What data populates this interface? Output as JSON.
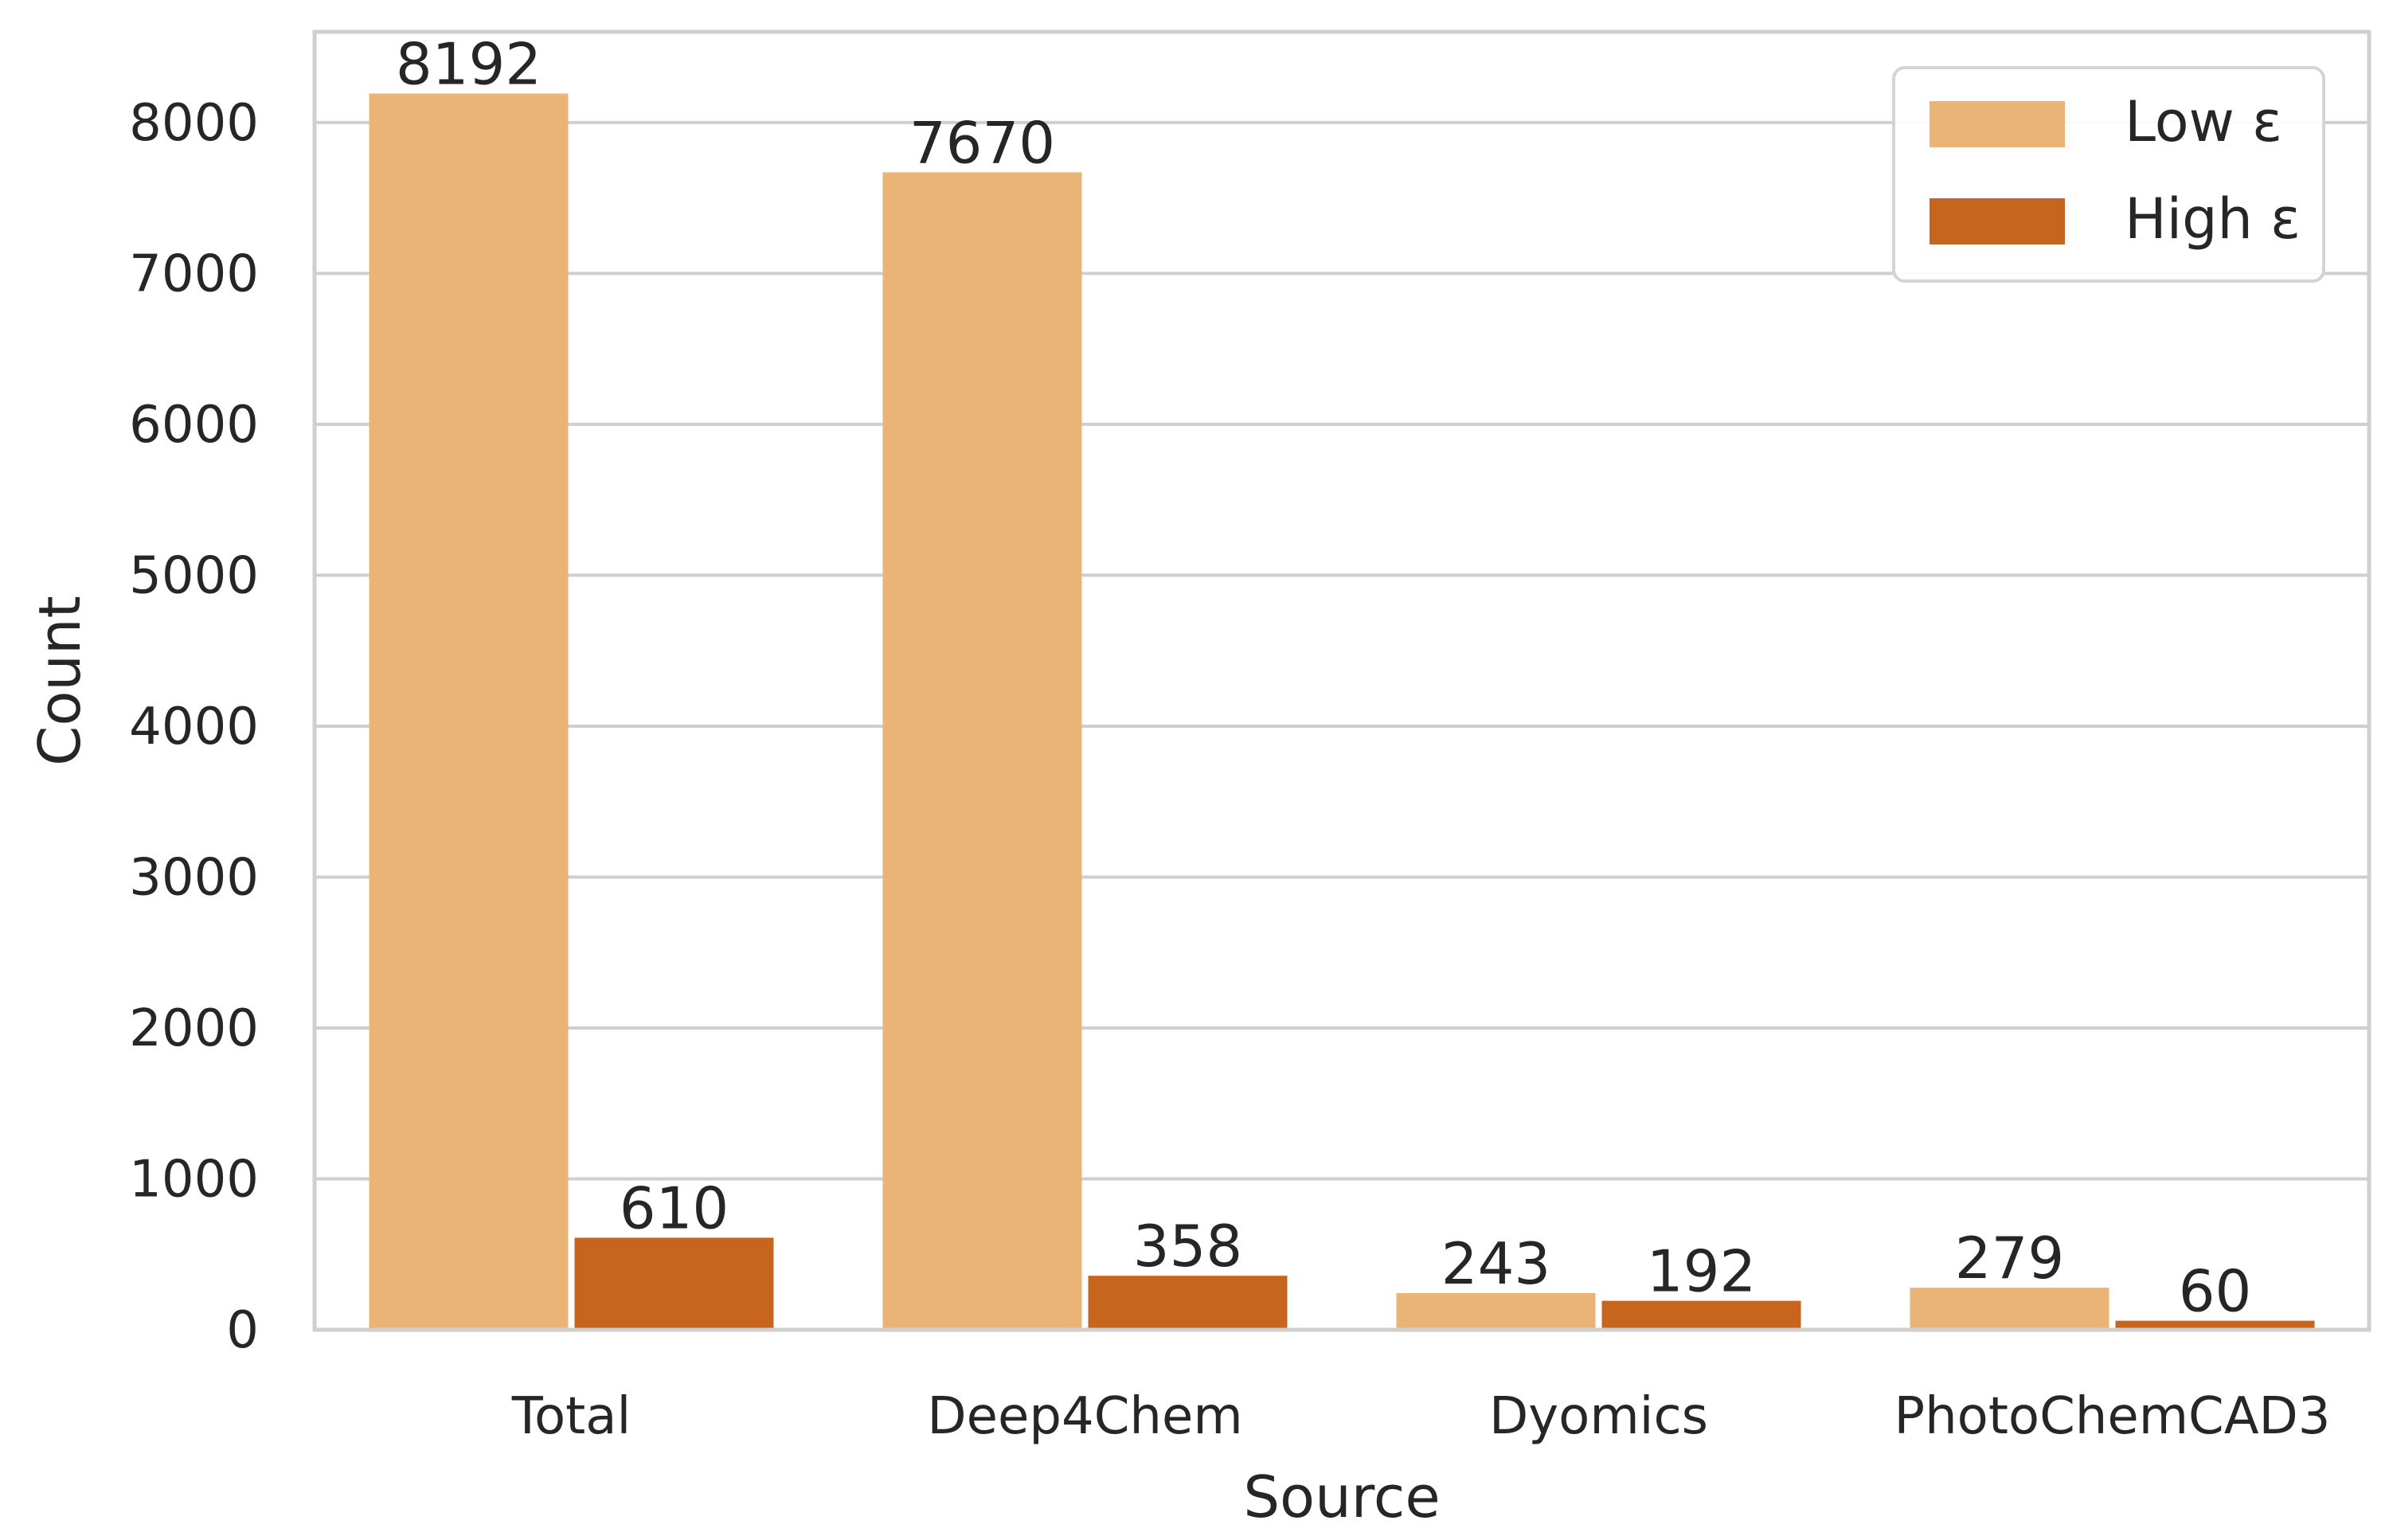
{
  "chart_data": {
    "type": "bar",
    "xlabel": "Source",
    "ylabel": "Count",
    "categories": [
      "Total",
      "Deep4Chem",
      "Dyomics",
      "PhotoChemCAD3"
    ],
    "series": [
      {
        "name": "Low ε",
        "values": [
          8192,
          7670,
          243,
          279
        ],
        "color": "#e9b475"
      },
      {
        "name": "High ε",
        "values": [
          610,
          358,
          192,
          60
        ],
        "color": "#c7641e"
      }
    ],
    "value_labels": [
      [
        "8192",
        "7670",
        "243",
        "279"
      ],
      [
        "610",
        "358",
        "192",
        "60"
      ]
    ],
    "yticks": [
      0,
      1000,
      2000,
      3000,
      4000,
      5000,
      6000,
      7000,
      8000
    ],
    "ylim": [
      0,
      8601
    ],
    "grid": true,
    "legend_position": "top-right",
    "style": {
      "grid_color": "#cfcfcf",
      "frame_color": "#cfcfcf",
      "background": "#ffffff"
    }
  }
}
